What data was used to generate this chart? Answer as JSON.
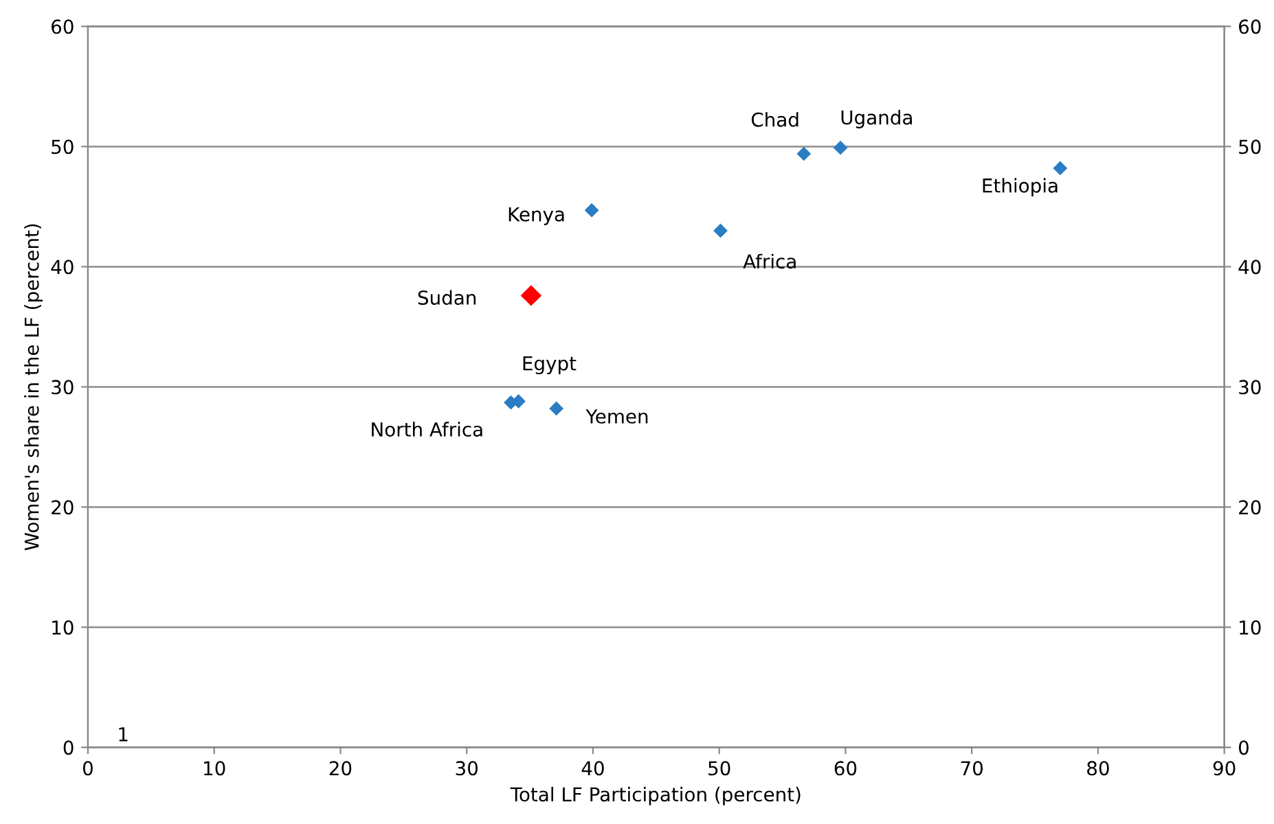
{
  "chart_data": {
    "type": "scatter",
    "xlabel": "Total LF Participation (percent)",
    "ylabel": "Women's share in the LF (percent)",
    "xlim": [
      0,
      90
    ],
    "xticks": [
      0,
      10,
      20,
      30,
      40,
      50,
      60,
      70,
      80,
      90
    ],
    "ylim": [
      0,
      60
    ],
    "yticks": [
      0,
      10,
      20,
      30,
      40,
      50,
      60
    ],
    "y2lim": [
      0,
      60
    ],
    "y2ticks": [
      0,
      10,
      20,
      30,
      40,
      50,
      60
    ],
    "grid": "y",
    "legend": false,
    "marker": "diamond",
    "series": [
      {
        "color": "#2a7dc2",
        "x": [
          56.7,
          59.6,
          77.0,
          39.9,
          50.1,
          34.1,
          33.5,
          37.1
        ],
        "values": [
          49.4,
          49.9,
          48.2,
          44.7,
          43.0,
          28.8,
          28.7,
          28.2
        ]
      },
      {
        "color": "#ff0000",
        "x": [
          35.1
        ],
        "values": [
          37.6
        ]
      }
    ],
    "annotations": [
      {
        "text": "Chad",
        "x": 56.7,
        "y": 49.4
      },
      {
        "text": "Uganda",
        "x": 59.6,
        "y": 49.9
      },
      {
        "text": "Ethiopia",
        "x": 77.0,
        "y": 48.2
      },
      {
        "text": "Kenya",
        "x": 39.9,
        "y": 44.7
      },
      {
        "text": "Africa",
        "x": 50.1,
        "y": 43.0
      },
      {
        "text": "Sudan",
        "x": 35.1,
        "y": 37.6
      },
      {
        "text": "Egypt",
        "x": 34.1,
        "y": 28.8
      },
      {
        "text": "North Africa",
        "x": 33.5,
        "y": 28.7
      },
      {
        "text": "Yemen",
        "x": 37.1,
        "y": 28.2
      },
      "1"
    ]
  }
}
